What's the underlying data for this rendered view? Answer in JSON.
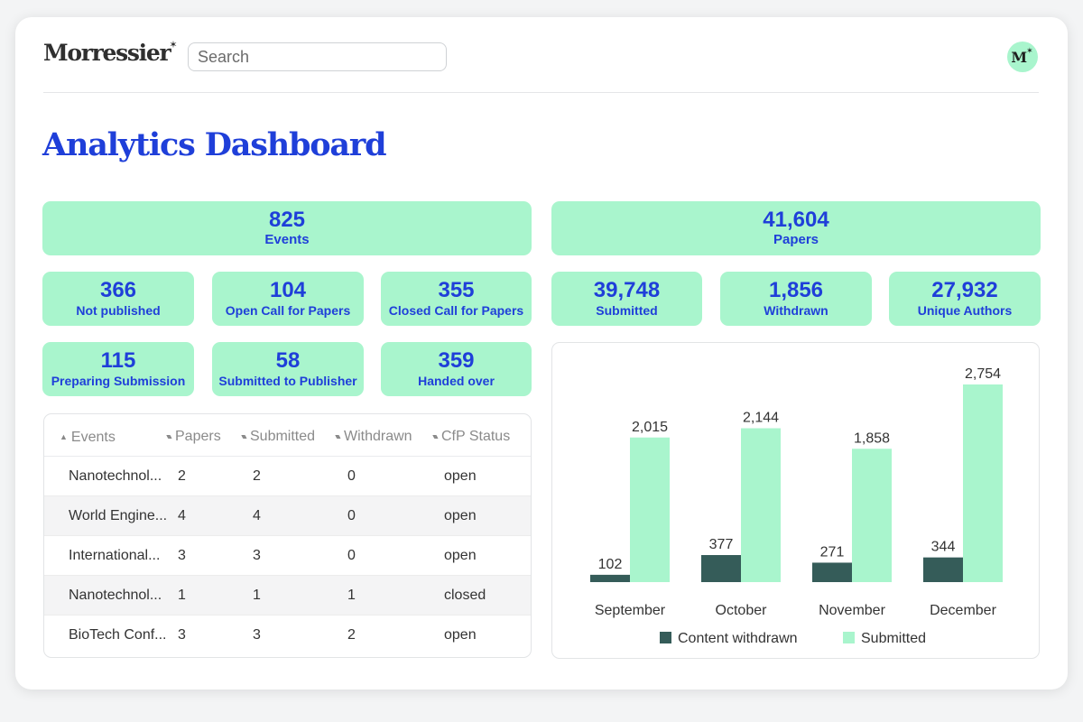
{
  "header": {
    "logo_text": "Morressier",
    "logo_star": "✶",
    "search_placeholder": "Search",
    "avatar_letter": "M",
    "avatar_star": "✶"
  },
  "page_title": "Analytics Dashboard",
  "events_stats": {
    "total": {
      "value": "825",
      "label": "Events"
    },
    "items": [
      {
        "value": "366",
        "label": "Not published"
      },
      {
        "value": "104",
        "label": "Open Call for Papers"
      },
      {
        "value": "355",
        "label": "Closed Call for Papers"
      },
      {
        "value": "115",
        "label": "Preparing Submission"
      },
      {
        "value": "58",
        "label": "Submitted to Publisher"
      },
      {
        "value": "359",
        "label": "Handed over"
      }
    ]
  },
  "papers_stats": {
    "total": {
      "value": "41,604",
      "label": "Papers"
    },
    "items": [
      {
        "value": "39,748",
        "label": "Submitted"
      },
      {
        "value": "1,856",
        "label": "Withdrawn"
      },
      {
        "value": "27,932",
        "label": "Unique Authors"
      }
    ]
  },
  "table": {
    "headers": [
      "Events",
      "Papers",
      "Submitted",
      "Withdrawn",
      "CfP Status"
    ],
    "sort_up_icon": "▲",
    "sort_both_icon": "▲▼",
    "rows": [
      [
        "Nanotechnol...",
        "2",
        "2",
        "0",
        "open"
      ],
      [
        "World Engine...",
        "4",
        "4",
        "0",
        "open"
      ],
      [
        "International...",
        "3",
        "3",
        "0",
        "open"
      ],
      [
        "Nanotechnol...",
        "1",
        "1",
        "1",
        "closed"
      ],
      [
        "BioTech Conf...",
        "3",
        "3",
        "2",
        "open"
      ]
    ]
  },
  "chart_data": {
    "type": "bar",
    "categories": [
      "September",
      "October",
      "November",
      "December"
    ],
    "series": [
      {
        "name": "Content withdrawn",
        "values": [
          102,
          377,
          271,
          344
        ],
        "labels": [
          "102",
          "377",
          "271",
          "344"
        ],
        "color": "#355c59"
      },
      {
        "name": "Submitted",
        "values": [
          2015,
          2144,
          1858,
          2754
        ],
        "labels": [
          "2,015",
          "2,144",
          "1,858",
          "2,754"
        ],
        "color": "#a9f5cd"
      }
    ],
    "ylim": [
      0,
      2754
    ],
    "legend": "bottom",
    "grid": false
  },
  "colors": {
    "accent": "#1f3fd9",
    "mint": "#a9f5cd",
    "dark_green": "#355c59"
  }
}
